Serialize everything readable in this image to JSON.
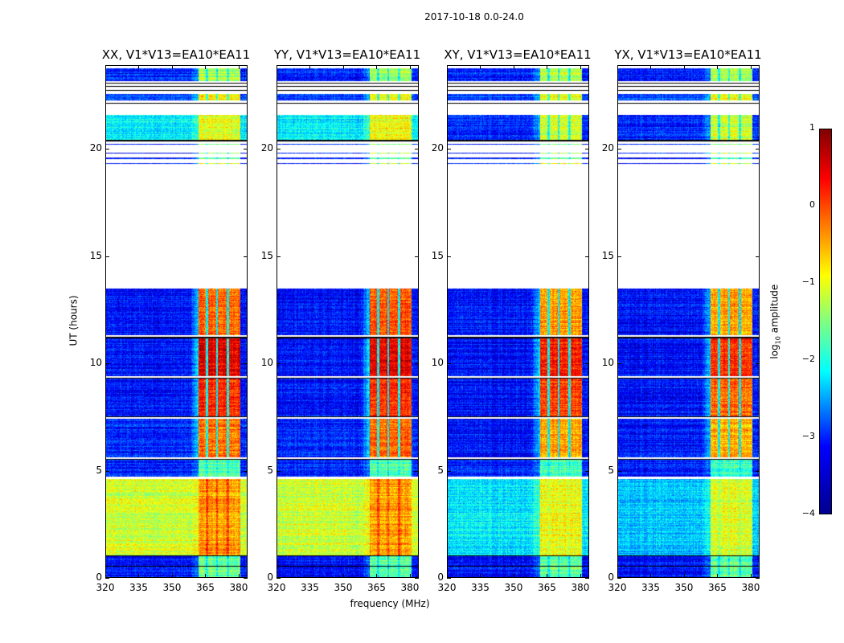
{
  "suptitle": "2017-10-18 0.0-24.0",
  "colorbar": {
    "label": "log10 amplitude",
    "label_main": "log",
    "label_sub": "10",
    "label_rest": " amplitude",
    "ticks": [
      "1",
      "0",
      "−1",
      "−2",
      "−3",
      "−4"
    ],
    "vmin": -4,
    "vmax": 1,
    "colormap": "jet"
  },
  "chart_data": {
    "type": "heatmap",
    "xlabel": "frequency (MHz)",
    "ylabel": "UT (hours)",
    "xlim": [
      320,
      384
    ],
    "ylim": [
      0,
      23.9
    ],
    "xticks": [
      "320",
      "335",
      "350",
      "365",
      "380"
    ],
    "yticks": [
      "0",
      "5",
      "10",
      "15",
      "20"
    ],
    "bright_band_MHz": [
      362,
      381
    ],
    "band_notches_MHz": [
      366,
      370.5,
      375.5
    ],
    "flag_lines_hours": [
      0.5,
      1.0,
      5.5,
      7.5,
      9.3,
      11.2,
      20.4,
      22.15,
      22.75,
      22.95,
      23.1
    ],
    "panels": [
      {
        "title": "XX, V1*V13=EA10*EA11",
        "segments": [
          [
            0,
            1.0,
            -3.3,
            -1.6
          ],
          [
            1.0,
            4.6,
            -1.1,
            -0.4
          ],
          [
            4.7,
            5.5,
            -3.2,
            -1.7
          ],
          [
            5.6,
            7.4,
            -3.2,
            -0.2
          ],
          [
            7.5,
            9.3,
            -3.3,
            0.2
          ],
          [
            9.4,
            11.2,
            -3.3,
            0.5
          ],
          [
            11.3,
            13.5,
            -3.3,
            -0.1
          ],
          [
            19.3,
            19.35,
            -3.3,
            -1
          ],
          [
            19.55,
            19.6,
            -3.3,
            -1.6
          ],
          [
            19.8,
            19.85,
            -3.3,
            -1.2
          ],
          [
            20.2,
            20.25,
            -3.3,
            -1.5
          ],
          [
            20.45,
            21.6,
            -2.2,
            -1.0
          ],
          [
            22.3,
            22.6,
            -3.0,
            -0.8
          ],
          [
            23.2,
            23.8,
            -3.2,
            -1.3
          ]
        ]
      },
      {
        "title": "YY, V1*V13=EA10*EA11",
        "segments": [
          [
            0,
            1.0,
            -3.3,
            -1.6
          ],
          [
            1.0,
            4.6,
            -1.1,
            -0.4
          ],
          [
            4.7,
            5.5,
            -3.2,
            -1.7
          ],
          [
            5.6,
            7.4,
            -3.2,
            -0.1
          ],
          [
            7.5,
            9.3,
            -3.3,
            0.2
          ],
          [
            9.4,
            11.2,
            -3.3,
            0.5
          ],
          [
            11.3,
            13.5,
            -3.3,
            0.0
          ],
          [
            19.3,
            19.35,
            -3.3,
            -1
          ],
          [
            19.55,
            19.6,
            -3.3,
            -1.6
          ],
          [
            19.8,
            19.85,
            -3.3,
            -1.2
          ],
          [
            20.2,
            20.25,
            -3.3,
            -1.5
          ],
          [
            20.45,
            21.6,
            -2.2,
            -0.9
          ],
          [
            22.3,
            22.6,
            -3.0,
            -0.8
          ],
          [
            23.2,
            23.8,
            -3.2,
            -1.3
          ]
        ]
      },
      {
        "title": "XY, V1*V13=EA10*EA11",
        "segments": [
          [
            0,
            1.0,
            -3.3,
            -1.6
          ],
          [
            1.0,
            4.6,
            -2.2,
            -0.9
          ],
          [
            4.7,
            5.5,
            -3.2,
            -1.8
          ],
          [
            5.6,
            7.4,
            -3.3,
            -0.4
          ],
          [
            7.5,
            9.3,
            -3.3,
            0.1
          ],
          [
            9.4,
            11.2,
            -3.3,
            0.3
          ],
          [
            11.3,
            13.5,
            -3.3,
            -0.4
          ],
          [
            19.3,
            19.35,
            -3.3,
            -1
          ],
          [
            19.55,
            19.6,
            -3.3,
            -1.6
          ],
          [
            19.8,
            19.85,
            -3.3,
            -1.2
          ],
          [
            20.2,
            20.25,
            -3.3,
            -1.5
          ],
          [
            20.45,
            21.6,
            -3.2,
            -1.1
          ],
          [
            22.3,
            22.6,
            -3.0,
            -0.9
          ],
          [
            23.2,
            23.8,
            -3.2,
            -1.2
          ]
        ]
      },
      {
        "title": "YX, V1*V13=EA10*EA11",
        "segments": [
          [
            0,
            1.0,
            -3.3,
            -1.6
          ],
          [
            1.0,
            4.6,
            -2.4,
            -1.0
          ],
          [
            4.7,
            5.5,
            -3.2,
            -1.8
          ],
          [
            5.6,
            7.4,
            -3.3,
            -0.5
          ],
          [
            7.5,
            9.3,
            -3.3,
            -0.1
          ],
          [
            9.4,
            11.2,
            -3.3,
            0.2
          ],
          [
            11.3,
            13.5,
            -3.3,
            -0.4
          ],
          [
            19.3,
            19.35,
            -3.3,
            -1
          ],
          [
            19.55,
            19.6,
            -3.3,
            -1.6
          ],
          [
            19.8,
            19.85,
            -3.3,
            -1.2
          ],
          [
            20.2,
            20.25,
            -3.3,
            -1.5
          ],
          [
            20.45,
            21.6,
            -3.2,
            -1.1
          ],
          [
            22.3,
            22.6,
            -3.0,
            -0.9
          ],
          [
            23.2,
            23.8,
            -3.2,
            -1.2
          ]
        ]
      }
    ]
  }
}
